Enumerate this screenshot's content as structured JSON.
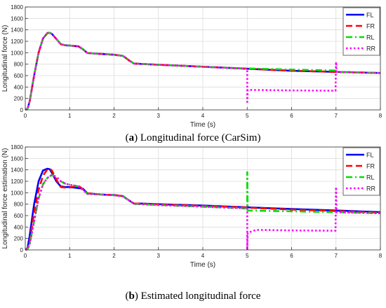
{
  "captions": {
    "a_letter": "a",
    "a_text": "Longitudinal force (CarSim)",
    "b_letter": "b",
    "b_text": "Estimated longitudinal force"
  },
  "chart_data": [
    {
      "type": "line",
      "title": "",
      "xlabel": "Time (s)",
      "ylabel": "Longitudinal force (N)",
      "xlim": [
        0,
        8
      ],
      "ylim": [
        0,
        1800
      ],
      "xticks": [
        0,
        1,
        2,
        3,
        4,
        5,
        6,
        7,
        8
      ],
      "yticks": [
        0,
        200,
        400,
        600,
        800,
        1000,
        1200,
        1400,
        1600,
        1800
      ],
      "grid": true,
      "legend_position": "top-right",
      "series": [
        {
          "name": "FL",
          "color": "#0000ff",
          "dash": "solid",
          "points": [
            [
              0,
              0
            ],
            [
              0.05,
              20
            ],
            [
              0.1,
              150
            ],
            [
              0.2,
              600
            ],
            [
              0.3,
              1000
            ],
            [
              0.4,
              1250
            ],
            [
              0.5,
              1345
            ],
            [
              0.55,
              1350
            ],
            [
              0.6,
              1330
            ],
            [
              0.7,
              1240
            ],
            [
              0.8,
              1150
            ],
            [
              0.9,
              1130
            ],
            [
              1.0,
              1125
            ],
            [
              1.2,
              1110
            ],
            [
              1.3,
              1060
            ],
            [
              1.4,
              995
            ],
            [
              1.6,
              985
            ],
            [
              1.8,
              975
            ],
            [
              2.0,
              965
            ],
            [
              2.2,
              945
            ],
            [
              2.35,
              860
            ],
            [
              2.45,
              810
            ],
            [
              2.6,
              805
            ],
            [
              3.0,
              790
            ],
            [
              4.0,
              755
            ],
            [
              5.0,
              720
            ],
            [
              6.0,
              685
            ],
            [
              7.0,
              665
            ],
            [
              8.0,
              645
            ]
          ]
        },
        {
          "name": "FR",
          "color": "#ff0000",
          "dash": "dashed",
          "points": [
            [
              0,
              0
            ],
            [
              0.05,
              20
            ],
            [
              0.1,
              150
            ],
            [
              0.2,
              600
            ],
            [
              0.3,
              1000
            ],
            [
              0.4,
              1250
            ],
            [
              0.5,
              1345
            ],
            [
              0.55,
              1350
            ],
            [
              0.6,
              1330
            ],
            [
              0.7,
              1240
            ],
            [
              0.8,
              1150
            ],
            [
              0.9,
              1130
            ],
            [
              1.0,
              1125
            ],
            [
              1.2,
              1110
            ],
            [
              1.3,
              1060
            ],
            [
              1.4,
              995
            ],
            [
              1.6,
              985
            ],
            [
              1.8,
              975
            ],
            [
              2.0,
              965
            ],
            [
              2.2,
              945
            ],
            [
              2.35,
              860
            ],
            [
              2.45,
              810
            ],
            [
              2.6,
              805
            ],
            [
              3.0,
              790
            ],
            [
              4.0,
              755
            ],
            [
              5.0,
              720
            ],
            [
              6.0,
              685
            ],
            [
              7.0,
              665
            ],
            [
              8.0,
              645
            ]
          ]
        },
        {
          "name": "RL",
          "color": "#00dd00",
          "dash": "dashdot",
          "points": [
            [
              0,
              0
            ],
            [
              0.05,
              20
            ],
            [
              0.1,
              150
            ],
            [
              0.2,
              600
            ],
            [
              0.3,
              1000
            ],
            [
              0.4,
              1250
            ],
            [
              0.5,
              1345
            ],
            [
              0.55,
              1350
            ],
            [
              0.6,
              1330
            ],
            [
              0.7,
              1240
            ],
            [
              0.8,
              1150
            ],
            [
              0.9,
              1130
            ],
            [
              1.0,
              1125
            ],
            [
              1.2,
              1110
            ],
            [
              1.3,
              1060
            ],
            [
              1.4,
              995
            ],
            [
              1.6,
              985
            ],
            [
              1.8,
              975
            ],
            [
              2.0,
              965
            ],
            [
              2.2,
              945
            ],
            [
              2.35,
              860
            ],
            [
              2.45,
              810
            ],
            [
              2.6,
              805
            ],
            [
              3.0,
              790
            ],
            [
              4.0,
              755
            ],
            [
              5.0,
              725
            ],
            [
              6.0,
              705
            ],
            [
              7.0,
              690
            ],
            [
              7.01,
              665
            ],
            [
              8.0,
              645
            ]
          ]
        },
        {
          "name": "RR",
          "color": "#ff00ff",
          "dash": "dotted",
          "points": [
            [
              0,
              0
            ],
            [
              0.05,
              20
            ],
            [
              0.1,
              150
            ],
            [
              0.2,
              600
            ],
            [
              0.3,
              1000
            ],
            [
              0.4,
              1250
            ],
            [
              0.5,
              1345
            ],
            [
              0.55,
              1350
            ],
            [
              0.6,
              1330
            ],
            [
              0.7,
              1240
            ],
            [
              0.8,
              1150
            ],
            [
              0.9,
              1130
            ],
            [
              1.0,
              1125
            ],
            [
              1.2,
              1110
            ],
            [
              1.3,
              1060
            ],
            [
              1.4,
              995
            ],
            [
              1.6,
              985
            ],
            [
              1.8,
              975
            ],
            [
              2.0,
              965
            ],
            [
              2.2,
              945
            ],
            [
              2.35,
              860
            ],
            [
              2.45,
              810
            ],
            [
              2.6,
              805
            ],
            [
              3.0,
              790
            ],
            [
              4.0,
              755
            ],
            [
              5.0,
              720
            ],
            [
              5.0,
              140
            ],
            [
              5.01,
              350
            ],
            [
              6.0,
              340
            ],
            [
              6.99,
              335
            ],
            [
              7.0,
              840
            ],
            [
              7.01,
              665
            ],
            [
              8.0,
              645
            ]
          ]
        }
      ]
    },
    {
      "type": "line",
      "title": "",
      "xlabel": "Time (s)",
      "ylabel": "Longitudinal force estimation (N)",
      "xlim": [
        0,
        8
      ],
      "ylim": [
        0,
        1800
      ],
      "xticks": [
        0,
        1,
        2,
        3,
        4,
        5,
        6,
        7,
        8
      ],
      "yticks": [
        0,
        200,
        400,
        600,
        800,
        1000,
        1200,
        1400,
        1600,
        1800
      ],
      "grid": true,
      "legend_position": "top-right",
      "series": [
        {
          "name": "FL",
          "color": "#0000ff",
          "dash": "solid",
          "points": [
            [
              0,
              0
            ],
            [
              0.05,
              30
            ],
            [
              0.1,
              250
            ],
            [
              0.2,
              800
            ],
            [
              0.3,
              1200
            ],
            [
              0.4,
              1390
            ],
            [
              0.5,
              1420
            ],
            [
              0.55,
              1410
            ],
            [
              0.6,
              1350
            ],
            [
              0.7,
              1200
            ],
            [
              0.8,
              1110
            ],
            [
              0.9,
              1100
            ],
            [
              1.0,
              1100
            ],
            [
              1.1,
              1090
            ],
            [
              1.3,
              1070
            ],
            [
              1.4,
              990
            ],
            [
              1.6,
              975
            ],
            [
              1.8,
              965
            ],
            [
              2.0,
              960
            ],
            [
              2.2,
              940
            ],
            [
              2.35,
              860
            ],
            [
              2.45,
              810
            ],
            [
              2.6,
              810
            ],
            [
              3.0,
              800
            ],
            [
              4.0,
              775
            ],
            [
              5.0,
              745
            ],
            [
              6.0,
              715
            ],
            [
              7.0,
              690
            ],
            [
              8.0,
              660
            ]
          ]
        },
        {
          "name": "FR",
          "color": "#ff0000",
          "dash": "dashed",
          "points": [
            [
              0,
              0
            ],
            [
              0.05,
              20
            ],
            [
              0.1,
              150
            ],
            [
              0.2,
              650
            ],
            [
              0.3,
              1050
            ],
            [
              0.4,
              1300
            ],
            [
              0.5,
              1410
            ],
            [
              0.55,
              1420
            ],
            [
              0.6,
              1390
            ],
            [
              0.7,
              1230
            ],
            [
              0.8,
              1100
            ],
            [
              0.9,
              1090
            ],
            [
              1.0,
              1090
            ],
            [
              1.1,
              1110
            ],
            [
              1.2,
              1120
            ],
            [
              1.3,
              1060
            ],
            [
              1.4,
              990
            ],
            [
              1.6,
              975
            ],
            [
              1.8,
              965
            ],
            [
              2.0,
              960
            ],
            [
              2.2,
              940
            ],
            [
              2.35,
              860
            ],
            [
              2.45,
              810
            ],
            [
              2.6,
              810
            ],
            [
              3.0,
              795
            ],
            [
              4.0,
              770
            ],
            [
              5.0,
              740
            ],
            [
              6.0,
              705
            ],
            [
              7.0,
              680
            ],
            [
              8.0,
              650
            ]
          ]
        },
        {
          "name": "RL",
          "color": "#00dd00",
          "dash": "dashdot",
          "points": [
            [
              0,
              0
            ],
            [
              0.05,
              10
            ],
            [
              0.1,
              100
            ],
            [
              0.2,
              500
            ],
            [
              0.3,
              900
            ],
            [
              0.4,
              1150
            ],
            [
              0.5,
              1260
            ],
            [
              0.6,
              1310
            ],
            [
              0.7,
              1280
            ],
            [
              0.8,
              1200
            ],
            [
              0.9,
              1160
            ],
            [
              1.0,
              1140
            ],
            [
              1.2,
              1110
            ],
            [
              1.3,
              1050
            ],
            [
              1.4,
              980
            ],
            [
              1.6,
              975
            ],
            [
              1.8,
              965
            ],
            [
              2.0,
              955
            ],
            [
              2.2,
              935
            ],
            [
              2.35,
              860
            ],
            [
              2.45,
              805
            ],
            [
              2.6,
              800
            ],
            [
              3.0,
              785
            ],
            [
              4.0,
              755
            ],
            [
              5.0,
              725
            ],
            [
              5.0,
              1360
            ],
            [
              5.01,
              690
            ],
            [
              6.0,
              675
            ],
            [
              7.0,
              660
            ],
            [
              8.0,
              640
            ]
          ]
        },
        {
          "name": "RR",
          "color": "#ff00ff",
          "dash": "dotted",
          "points": [
            [
              0,
              0
            ],
            [
              0.05,
              10
            ],
            [
              0.1,
              100
            ],
            [
              0.2,
              500
            ],
            [
              0.3,
              900
            ],
            [
              0.4,
              1150
            ],
            [
              0.5,
              1260
            ],
            [
              0.6,
              1310
            ],
            [
              0.7,
              1280
            ],
            [
              0.8,
              1200
            ],
            [
              0.9,
              1160
            ],
            [
              1.0,
              1140
            ],
            [
              1.2,
              1110
            ],
            [
              1.3,
              1050
            ],
            [
              1.4,
              980
            ],
            [
              1.6,
              975
            ],
            [
              1.8,
              965
            ],
            [
              2.0,
              955
            ],
            [
              2.2,
              935
            ],
            [
              2.35,
              860
            ],
            [
              2.45,
              805
            ],
            [
              2.6,
              800
            ],
            [
              3.0,
              785
            ],
            [
              4.0,
              755
            ],
            [
              5.0,
              725
            ],
            [
              5.0,
              0
            ],
            [
              5.01,
              300
            ],
            [
              5.2,
              350
            ],
            [
              6.0,
              340
            ],
            [
              6.99,
              335
            ],
            [
              7.0,
              1100
            ],
            [
              7.01,
              660
            ],
            [
              8.0,
              640
            ]
          ]
        }
      ]
    }
  ]
}
